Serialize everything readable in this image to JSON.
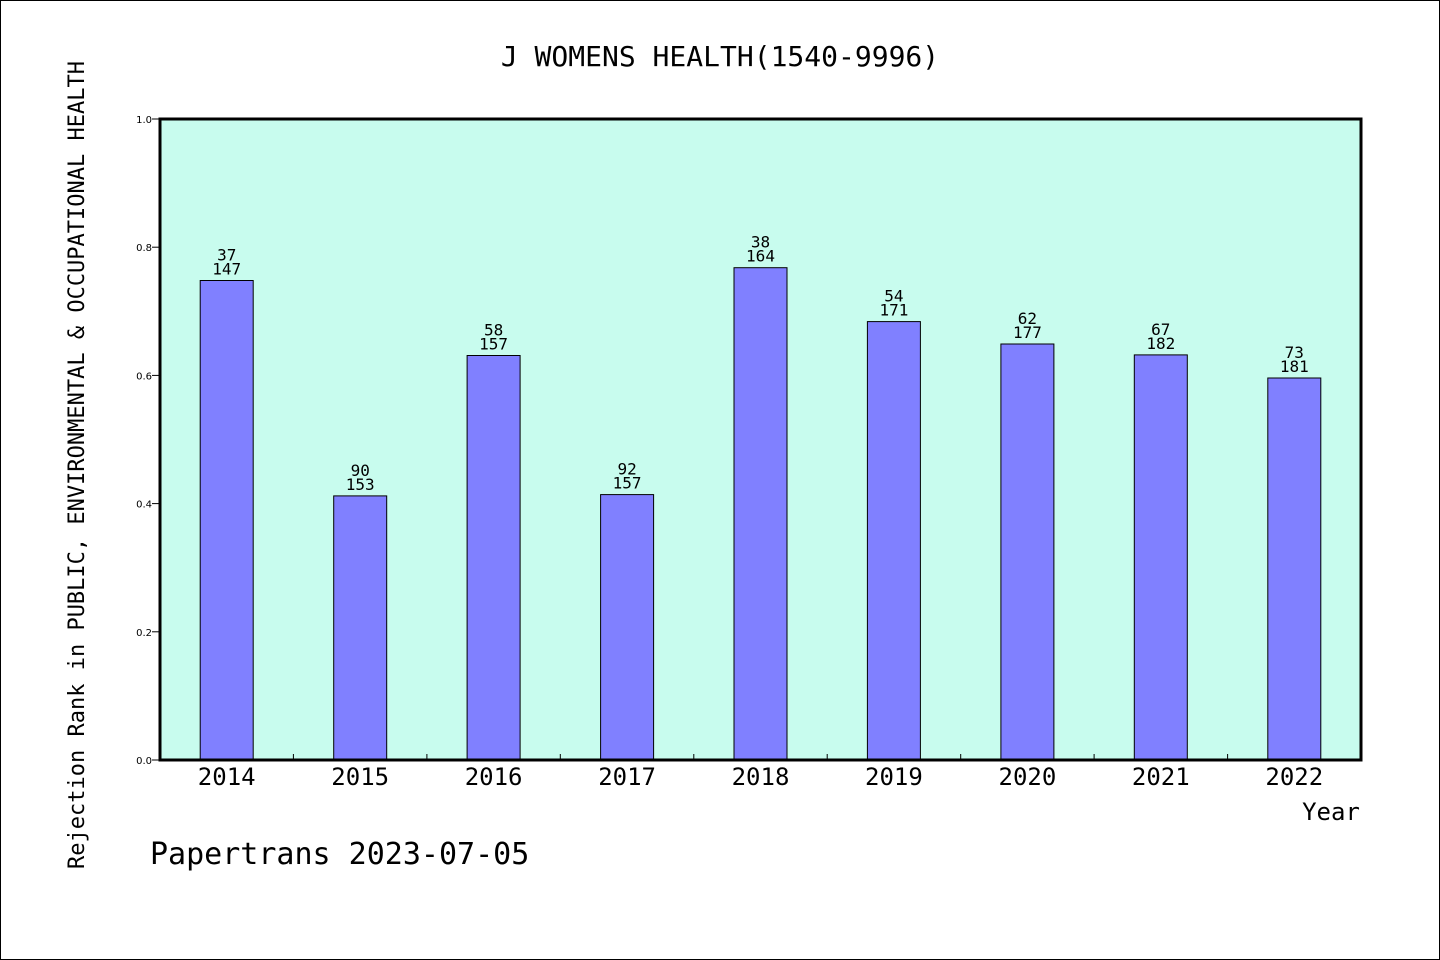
{
  "chart_data": {
    "type": "bar",
    "title": "J WOMENS HEALTH(1540-9996)",
    "xlabel": "Year",
    "ylabel": "Rejection Rank in PUBLIC, ENVIRONMENTAL & OCCUPATIONAL HEALTH",
    "ylim": [
      0,
      1.0
    ],
    "yticks": [
      "0.0",
      "0.2",
      "0.4",
      "0.6",
      "0.8",
      "1.0"
    ],
    "grid": false,
    "categories": [
      "2014",
      "2015",
      "2016",
      "2017",
      "2018",
      "2019",
      "2020",
      "2021",
      "2022"
    ],
    "values": [
      0.748,
      0.412,
      0.631,
      0.414,
      0.768,
      0.684,
      0.649,
      0.632,
      0.596
    ],
    "rank_labels": [
      "37",
      "90",
      "58",
      "92",
      "38",
      "54",
      "62",
      "67",
      "73"
    ],
    "total_labels": [
      "147",
      "153",
      "157",
      "157",
      "164",
      "171",
      "177",
      "182",
      "181"
    ],
    "colors": {
      "plot_bg": "#c8fcee",
      "bar_fill": "#8080ff",
      "bar_stroke": "#000000"
    }
  },
  "footer": {
    "credit": "Papertrans 2023-07-05"
  }
}
